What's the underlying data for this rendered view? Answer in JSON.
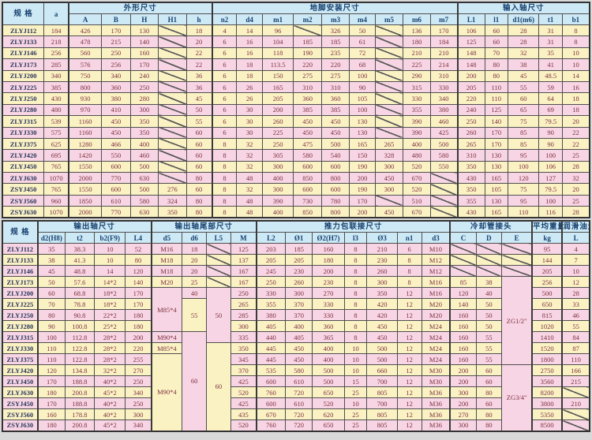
{
  "colors": {
    "header_bg": "#cde9f6",
    "header_text": "#17406e",
    "row_yellow": "#fbf2c3",
    "row_pink": "#f8d5e4",
    "data_text": "#7b2f3f",
    "spec_text": "#28355c",
    "border": "#4f4f4f"
  },
  "top_table": {
    "spec_header": "规 格",
    "col_a_header": "a",
    "groups": [
      {
        "label": "外形尺寸",
        "span": 5
      },
      {
        "label": "地脚安装尺寸",
        "span": 9
      },
      {
        "label": "输入轴尺寸",
        "span": 5
      }
    ],
    "subheaders": [
      "A",
      "B",
      "H",
      "H1",
      "h",
      "n2",
      "d4",
      "m1",
      "m2",
      "m3",
      "m4",
      "m5",
      "m6",
      "m7",
      "L1",
      "l1",
      "d1(m6)",
      "t1",
      "b1"
    ],
    "group_starts": [
      1,
      6,
      15
    ],
    "first_row": "yellow",
    "rows": [
      {
        "spec": "ZLYJ112",
        "cells": [
          "184",
          "426",
          "170",
          "130",
          "/",
          "18",
          "4",
          "14",
          "96",
          "/",
          "326",
          "50",
          "/",
          "136",
          "170",
          "106",
          "60",
          "28",
          "31",
          "8"
        ]
      },
      {
        "spec": "ZLYJ133",
        "cells": [
          "218",
          "478",
          "215",
          "140",
          "/",
          "20",
          "6",
          "16",
          "104",
          "185",
          "185",
          "61",
          "/",
          "180",
          "184",
          "125",
          "60",
          "28",
          "31",
          "8"
        ]
      },
      {
        "spec": "ZLYJ146",
        "cells": [
          "256",
          "560",
          "250",
          "160",
          "/",
          "22",
          "6",
          "16",
          "118",
          "190",
          "235",
          "72",
          "/",
          "210",
          "210",
          "148",
          "70",
          "32",
          "35",
          "10"
        ]
      },
      {
        "spec": "ZLYJ173",
        "cells": [
          "285",
          "576",
          "256",
          "170",
          "/",
          "22",
          "6",
          "18",
          "113.5",
          "220",
          "220",
          "68",
          "/",
          "225",
          "214",
          "148",
          "80",
          "38",
          "41",
          "10"
        ]
      },
      {
        "spec": "ZLYJ200",
        "cells": [
          "340",
          "750",
          "340",
          "240",
          "/",
          "36",
          "6",
          "18",
          "150",
          "275",
          "275",
          "100",
          "/",
          "290",
          "310",
          "200",
          "80",
          "45",
          "48.5",
          "14"
        ]
      },
      {
        "spec": "ZLYJ225",
        "cells": [
          "385",
          "800",
          "360",
          "250",
          "/",
          "36",
          "6",
          "26",
          "165",
          "310",
          "310",
          "90",
          "/",
          "315",
          "330",
          "205",
          "110",
          "55",
          "59",
          "16"
        ]
      },
      {
        "spec": "ZLYJ250",
        "cells": [
          "430",
          "930",
          "380",
          "280",
          "/",
          "45",
          "6",
          "26",
          "205",
          "360",
          "360",
          "105",
          "/",
          "330",
          "340",
          "220",
          "110",
          "60",
          "64",
          "18"
        ]
      },
      {
        "spec": "ZLYJ280",
        "cells": [
          "480",
          "970",
          "410",
          "300",
          "/",
          "50",
          "6",
          "30",
          "200",
          "385",
          "385",
          "100",
          "/",
          "355",
          "380",
          "240",
          "125",
          "65",
          "69",
          "18"
        ]
      },
      {
        "spec": "ZLYJ315",
        "cells": [
          "539",
          "1160",
          "450",
          "350",
          "/",
          "55",
          "6",
          "30",
          "260",
          "450",
          "450",
          "130",
          "/",
          "390",
          "460",
          "250",
          "140",
          "75",
          "79.5",
          "20"
        ]
      },
      {
        "spec": "ZLYJ330",
        "cells": [
          "575",
          "1160",
          "450",
          "350",
          "/",
          "60",
          "6",
          "30",
          "225",
          "450",
          "450",
          "130",
          "/",
          "390",
          "425",
          "260",
          "170",
          "85",
          "90",
          "22"
        ]
      },
      {
        "spec": "ZLYJ375",
        "cells": [
          "625",
          "1280",
          "466",
          "400",
          "/",
          "60",
          "8",
          "32",
          "250",
          "475",
          "500",
          "165",
          "265",
          "400",
          "500",
          "265",
          "170",
          "85",
          "90",
          "22"
        ]
      },
      {
        "spec": "ZLYJ420",
        "cells": [
          "695",
          "1420",
          "550",
          "460",
          "/",
          "60",
          "8",
          "32",
          "305",
          "580",
          "540",
          "150",
          "328",
          "480",
          "580",
          "310",
          "130",
          "95",
          "100",
          "25"
        ]
      },
      {
        "spec": "ZLYJ450",
        "cells": [
          "765",
          "1550",
          "600",
          "500",
          "/",
          "60",
          "8",
          "32",
          "300",
          "600",
          "600",
          "190",
          "300",
          "520",
          "550",
          "350",
          "130",
          "100",
          "106",
          "28"
        ]
      },
      {
        "spec": "ZLYJ630",
        "cells": [
          "1070",
          "2000",
          "770",
          "630",
          "/",
          "80",
          "8",
          "48",
          "400",
          "850",
          "800",
          "200",
          "450",
          "670",
          "/",
          "430",
          "165",
          "120",
          "127",
          "32"
        ]
      },
      {
        "spec": "ZSYJ450",
        "cells": [
          "765",
          "1550",
          "600",
          "500",
          "276",
          "60",
          "8",
          "32",
          "300",
          "600",
          "600",
          "190",
          "300",
          "520",
          "/",
          "350",
          "105",
          "75",
          "79.5",
          "20"
        ]
      },
      {
        "spec": "ZSYJ560",
        "cells": [
          "960",
          "1850",
          "610",
          "580",
          "324",
          "80",
          "8",
          "48",
          "390",
          "730",
          "780",
          "170",
          "/",
          "510",
          "/",
          "355",
          "130",
          "95",
          "100",
          "25"
        ]
      },
      {
        "spec": "ZSYJ630",
        "cells": [
          "1070",
          "2000",
          "770",
          "630",
          "350",
          "80",
          "8",
          "48",
          "400",
          "850",
          "800",
          "200",
          "450",
          "670",
          "/",
          "430",
          "165",
          "110",
          "116",
          "28"
        ]
      }
    ]
  },
  "bottom_table": {
    "spec_header": "规 格",
    "groups": [
      {
        "label": "输出轴尺寸",
        "span": 4
      },
      {
        "label": "输出轴尾部尺寸",
        "span": 4
      },
      {
        "label": "推力包联接尺寸",
        "span": 7
      },
      {
        "label": "冷却管接头",
        "span": 3
      },
      {
        "label": "平均重量",
        "span": 1
      },
      {
        "label": "润滑油量",
        "span": 1
      }
    ],
    "subheaders": [
      "d2(H8)",
      "t2",
      "b2(F9)",
      "L4",
      "d5",
      "d6",
      "L5",
      "M",
      "L2",
      "Ø1",
      "Ø2(H7)",
      "l3",
      "Ø3",
      "n1",
      "d3",
      "C",
      "D",
      "E",
      "kg",
      "L"
    ],
    "group_starts": [
      0,
      4,
      8,
      15,
      18,
      19
    ],
    "first_row": "pink",
    "rows": [
      {
        "spec": "ZLYJ112",
        "cells": [
          "35",
          "38.3",
          "10",
          "52",
          "M16",
          "18",
          "/",
          "125",
          "203",
          "185",
          "160",
          "8",
          "210",
          "6",
          "M10",
          "/",
          "/",
          "/",
          "95",
          "4"
        ]
      },
      {
        "spec": "ZLYJ133",
        "cells": [
          "38",
          "41.3",
          "10",
          "80",
          "M18",
          "20",
          "/",
          "137",
          "205",
          "205",
          "180",
          "8",
          "230",
          "8",
          "M12",
          "/",
          "/",
          "/",
          "144",
          "7"
        ]
      },
      {
        "spec": "ZLYJ146",
        "cells": [
          "45",
          "48.8",
          "14",
          "120",
          "M18",
          "20",
          "/",
          "167",
          "245",
          "230",
          "200",
          "8",
          "260",
          "8",
          "M12",
          "/",
          "/",
          "/",
          "205",
          "10"
        ]
      },
      {
        "spec": "ZLYJ173",
        "cells": [
          "50",
          "57.6",
          "14*2",
          "140",
          "M20",
          "25",
          "/",
          "167",
          "250",
          "260",
          "230",
          "8",
          "300",
          "8",
          "M16",
          "85",
          "38",
          {
            "v": "ZG1/2\"",
            "rs": 8,
            "bg": "pink"
          },
          "256",
          "12"
        ]
      },
      {
        "spec": "ZLYJ200",
        "cells": [
          "60",
          "68.8",
          "18*2",
          "170",
          {
            "v": "M85*4",
            "rs": 4,
            "bg": "pink"
          },
          "40",
          {
            "v": "50",
            "rs": 5,
            "bg": "pink"
          },
          "250",
          "330",
          "300",
          "270",
          "8",
          "350",
          "12",
          "M16",
          "120",
          "40",
          null,
          "500",
          "28"
        ]
      },
      {
        "spec": "ZLYJ225",
        "cells": [
          "70",
          "78.8",
          "18*2",
          "170",
          null,
          {
            "v": "55",
            "rs": 3,
            "bg": "yellow"
          },
          null,
          "265",
          "355",
          "370",
          "330",
          "8",
          "420",
          "12",
          "M20",
          "140",
          "50",
          null,
          "650",
          "33"
        ]
      },
      {
        "spec": "ZLYJ250",
        "cells": [
          "80",
          "90.8",
          "22*2",
          "180",
          null,
          null,
          null,
          "285",
          "380",
          "370",
          "330",
          "8",
          "420",
          "12",
          "M20",
          "160",
          "50",
          null,
          "815",
          "46"
        ]
      },
      {
        "spec": "ZLYJ280",
        "cells": [
          "90",
          "100.8",
          "25*2",
          "180",
          null,
          null,
          null,
          "300",
          "405",
          "400",
          "360",
          "8",
          "450",
          "12",
          "M24",
          "160",
          "50",
          null,
          "1020",
          "55"
        ]
      },
      {
        "spec": "ZLYJ315",
        "cells": [
          "100",
          "112.8",
          "28*2",
          "200",
          {
            "v": "M90*4",
            "bg": "pink"
          },
          {
            "v": "60",
            "rs": 9,
            "bg": "pink"
          },
          null,
          "335",
          "440",
          "405",
          "365",
          "8",
          "450",
          "12",
          "M24",
          "160",
          "55",
          null,
          "1410",
          "84"
        ]
      },
      {
        "spec": "ZLYJ330",
        "cells": [
          "110",
          "122.8",
          "28*2",
          "220",
          {
            "v": "M85*4",
            "bg": "yellow"
          },
          null,
          {
            "v": "60",
            "rs": 8,
            "bg": "yellow"
          },
          "350",
          "445",
          "450",
          "400",
          "10",
          "500",
          "12",
          "M24",
          "160",
          "55",
          null,
          "1520",
          "87"
        ]
      },
      {
        "spec": "ZLYJ375",
        "cells": [
          "110",
          "122.8",
          "28*2",
          "255",
          {
            "v": "M90*4",
            "rs": 7,
            "bg": "yellow"
          },
          null,
          null,
          "345",
          "445",
          "450",
          "400",
          "10",
          "500",
          "12",
          "M24",
          "160",
          "55",
          null,
          "1800",
          "110"
        ]
      },
      {
        "spec": "ZLYJ420",
        "cells": [
          "120",
          "134.8",
          "32*2",
          "270",
          null,
          null,
          null,
          "370",
          "535",
          "580",
          "500",
          "10",
          "660",
          "12",
          "M30",
          "200",
          "60",
          {
            "v": "ZG3/4\"",
            "rs": 6,
            "bg": "pink"
          },
          "2750",
          "166"
        ]
      },
      {
        "spec": "ZLYJ450",
        "cells": [
          "170",
          "188.8",
          "40*2",
          "250",
          null,
          null,
          null,
          "425",
          "600",
          "610",
          "500",
          "15",
          "700",
          "12",
          "M30",
          "200",
          "60",
          null,
          "3560",
          "215"
        ]
      },
      {
        "spec": "ZLYJ630",
        "cells": [
          "180",
          "200.8",
          "45*2",
          "340",
          null,
          null,
          null,
          "520",
          "760",
          "720",
          "650",
          "25",
          "805",
          "12",
          "M36",
          "300",
          "80",
          null,
          "8200",
          "/"
        ]
      },
      {
        "spec": "ZSYJ450",
        "cells": [
          "170",
          "188.8",
          "40*2",
          "250",
          null,
          null,
          null,
          "425",
          "600",
          "610",
          "520",
          "10",
          "700",
          "12",
          "M36",
          "200",
          "60",
          null,
          "3800",
          "210"
        ]
      },
      {
        "spec": "ZSYJ560",
        "cells": [
          "160",
          "178.8",
          "40*2",
          "300",
          null,
          null,
          null,
          "435",
          "670",
          "720",
          "620",
          "25",
          "805",
          "12",
          "M36",
          "270",
          "80",
          null,
          "5350",
          "/"
        ]
      },
      {
        "spec": "ZSYJ630",
        "cells": [
          "180",
          "200.8",
          "45*2",
          "340",
          null,
          null,
          null,
          "520",
          "760",
          "720",
          "650",
          "25",
          "805",
          "12",
          "M36",
          "300",
          "80",
          null,
          "8500",
          "/"
        ]
      }
    ]
  }
}
